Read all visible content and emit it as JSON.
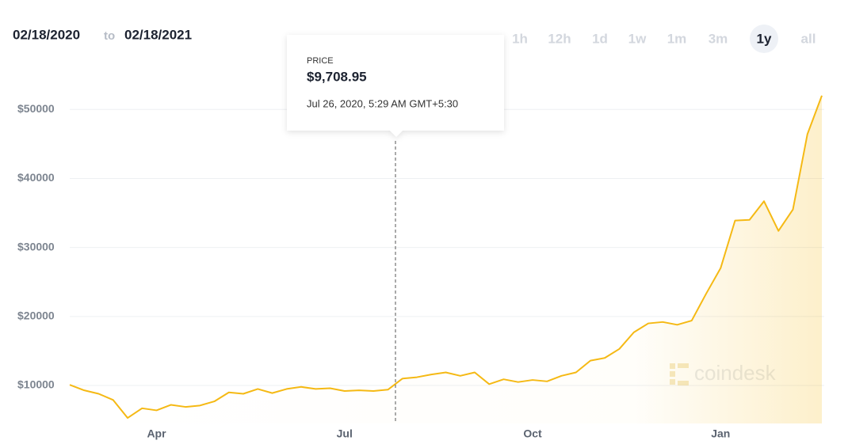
{
  "header": {
    "from": "02/18/2020",
    "to": "to",
    "until": "02/18/2021"
  },
  "range_buttons": {
    "items": [
      "1h",
      "12h",
      "1d",
      "1w",
      "1m",
      "3m",
      "1y",
      "all"
    ],
    "active": 6
  },
  "watermark": "coindesk",
  "chart_data": {
    "type": "line",
    "categories": [
      null,
      null,
      null,
      null,
      null,
      null,
      "Apr",
      null,
      null,
      null,
      null,
      null,
      null,
      null,
      null,
      null,
      null,
      null,
      null,
      "Jul",
      null,
      null,
      null,
      null,
      null,
      null,
      null,
      null,
      null,
      null,
      null,
      null,
      "Oct",
      null,
      null,
      null,
      null,
      null,
      null,
      null,
      null,
      null,
      null,
      null,
      null,
      "Jan",
      null,
      null,
      null,
      null,
      null,
      null,
      null
    ],
    "series": [
      {
        "name": "Price",
        "color": "#f5b914",
        "values": [
          10100,
          9300,
          8800,
          7900,
          5300,
          6700,
          6400,
          7200,
          6900,
          7100,
          7700,
          9000,
          8800,
          9500,
          8900,
          9500,
          9800,
          9500,
          9600,
          9200,
          9300,
          9200,
          9400,
          11000,
          11200,
          11600,
          11900,
          11400,
          11900,
          10200,
          10900,
          10500,
          10800,
          10600,
          11400,
          11900,
          13600,
          14000,
          15300,
          17700,
          19000,
          19200,
          18800,
          19400,
          23300,
          27000,
          33900,
          34000,
          36700,
          32400,
          35500,
          46400,
          52000
        ]
      }
    ],
    "ylim": [
      4500,
      54500
    ],
    "yticks": [
      {
        "value": 10000,
        "label": "$10000"
      },
      {
        "value": 20000,
        "label": "$20000"
      },
      {
        "value": 30000,
        "label": "$30000"
      },
      {
        "value": 40000,
        "label": "$40000"
      },
      {
        "value": 50000,
        "label": "$50000"
      }
    ],
    "grid": true,
    "tooltip": {
      "label": "PRICE",
      "value": "$9,708.95",
      "time": "Jul 26, 2020, 5:29 AM GMT+5:30"
    }
  }
}
